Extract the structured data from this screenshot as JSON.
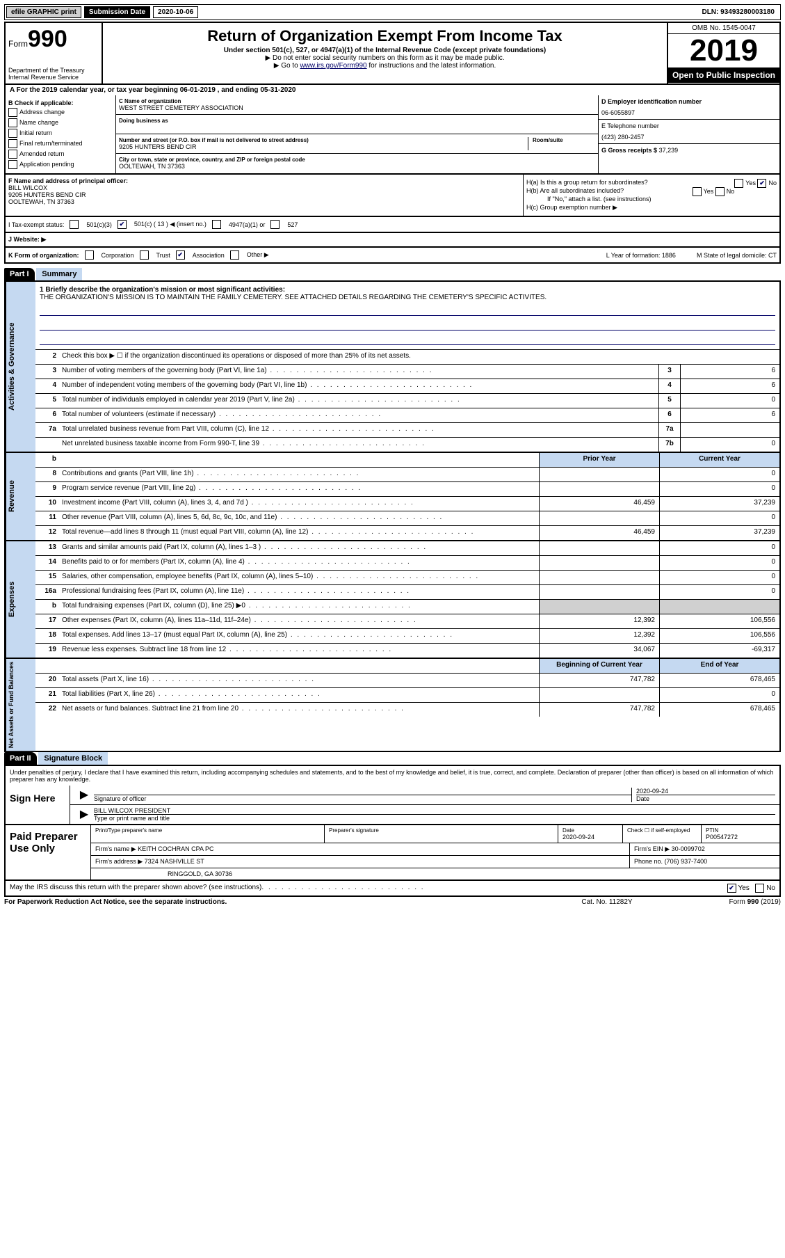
{
  "topbar": {
    "efile": "efile GRAPHIC print",
    "submission_label": "Submission Date",
    "submission_date": "2020-10-06",
    "dln": "DLN: 93493280003180"
  },
  "header": {
    "form_label": "Form",
    "form_num": "990",
    "dept": "Department of the Treasury\nInternal Revenue Service",
    "title": "Return of Organization Exempt From Income Tax",
    "sub1": "Under section 501(c), 527, or 4947(a)(1) of the Internal Revenue Code (except private foundations)",
    "sub2": "▶ Do not enter social security numbers on this form as it may be made public.",
    "sub3_pre": "▶ Go to ",
    "sub3_link": "www.irs.gov/Form990",
    "sub3_post": " for instructions and the latest information.",
    "omb": "OMB No. 1545-0047",
    "year": "2019",
    "inspect": "Open to Public Inspection"
  },
  "line_a": "A For the 2019 calendar year, or tax year beginning 06-01-2019    , and ending 05-31-2020",
  "col_b": {
    "title": "B Check if applicable:",
    "items": [
      "Address change",
      "Name change",
      "Initial return",
      "Final return/terminated",
      "Amended return",
      "Application pending"
    ]
  },
  "col_c": {
    "name_label": "C Name of organization",
    "name": "WEST STREET CEMETERY ASSOCIATION",
    "dba_label": "Doing business as",
    "addr_label": "Number and street (or P.O. box if mail is not delivered to street address)",
    "room_label": "Room/suite",
    "addr": "9205 HUNTERS BEND CIR",
    "city_label": "City or town, state or province, country, and ZIP or foreign postal code",
    "city": "OOLTEWAH, TN  37363"
  },
  "col_d": {
    "ein_label": "D Employer identification number",
    "ein": "06-6055897",
    "phone_label": "E Telephone number",
    "phone": "(423) 280-2457",
    "gross_label": "G Gross receipts $",
    "gross": "37,239"
  },
  "principal": {
    "label": "F  Name and address of principal officer:",
    "name": "BILL WILCOX",
    "addr1": "9205 HUNTERS BEND CIR",
    "addr2": "OOLTEWAH, TN  37363",
    "ha": "H(a)  Is this a group return for subordinates?",
    "hb": "H(b)  Are all subordinates included?",
    "hb_note": "If \"No,\" attach a list. (see instructions)",
    "hc": "H(c)  Group exemption number ▶",
    "yes": "Yes",
    "no": "No"
  },
  "status": {
    "label": "I   Tax-exempt status:",
    "opt1": "501(c)(3)",
    "opt2": "501(c) ( 13 ) ◀ (insert no.)",
    "opt3": "4947(a)(1) or",
    "opt4": "527"
  },
  "website": {
    "label": "J   Website: ▶"
  },
  "kform": {
    "label": "K Form of organization:",
    "opts": [
      "Corporation",
      "Trust",
      "Association",
      "Other ▶"
    ],
    "l": "L Year of formation: 1886",
    "m": "M State of legal domicile: CT"
  },
  "part1": {
    "part": "Part I",
    "title": "Summary"
  },
  "mission": {
    "q": "1  Briefly describe the organization's mission or most significant activities:",
    "text": "THE ORGANIZATION'S MISSION IS TO MAINTAIN THE FAMILY CEMETERY. SEE ATTACHED DETAILS REGARDING THE CEMETERY'S SPECIFIC ACTIVITES."
  },
  "governance": {
    "section": "Activities & Governance",
    "r2": "Check this box ▶ ☐  if the organization discontinued its operations or disposed of more than 25% of its net assets.",
    "rows": [
      {
        "n": "3",
        "d": "Number of voting members of the governing body (Part VI, line 1a)",
        "b": "3",
        "v": "6"
      },
      {
        "n": "4",
        "d": "Number of independent voting members of the governing body (Part VI, line 1b)",
        "b": "4",
        "v": "6"
      },
      {
        "n": "5",
        "d": "Total number of individuals employed in calendar year 2019 (Part V, line 2a)",
        "b": "5",
        "v": "0"
      },
      {
        "n": "6",
        "d": "Total number of volunteers (estimate if necessary)",
        "b": "6",
        "v": "6"
      },
      {
        "n": "7a",
        "d": "Total unrelated business revenue from Part VIII, column (C), line 12",
        "b": "7a",
        "v": ""
      },
      {
        "n": "",
        "d": "Net unrelated business taxable income from Form 990-T, line 39",
        "b": "7b",
        "v": "0"
      }
    ]
  },
  "two_col_header": {
    "pb": "b",
    "prior": "Prior Year",
    "curr": "Current Year"
  },
  "revenue": {
    "section": "Revenue",
    "rows": [
      {
        "n": "8",
        "d": "Contributions and grants (Part VIII, line 1h)",
        "p": "",
        "c": "0"
      },
      {
        "n": "9",
        "d": "Program service revenue (Part VIII, line 2g)",
        "p": "",
        "c": "0"
      },
      {
        "n": "10",
        "d": "Investment income (Part VIII, column (A), lines 3, 4, and 7d )",
        "p": "46,459",
        "c": "37,239"
      },
      {
        "n": "11",
        "d": "Other revenue (Part VIII, column (A), lines 5, 6d, 8c, 9c, 10c, and 11e)",
        "p": "",
        "c": "0"
      },
      {
        "n": "12",
        "d": "Total revenue—add lines 8 through 11 (must equal Part VIII, column (A), line 12)",
        "p": "46,459",
        "c": "37,239"
      }
    ]
  },
  "expenses": {
    "section": "Expenses",
    "rows": [
      {
        "n": "13",
        "d": "Grants and similar amounts paid (Part IX, column (A), lines 1–3 )",
        "p": "",
        "c": "0"
      },
      {
        "n": "14",
        "d": "Benefits paid to or for members (Part IX, column (A), line 4)",
        "p": "",
        "c": "0"
      },
      {
        "n": "15",
        "d": "Salaries, other compensation, employee benefits (Part IX, column (A), lines 5–10)",
        "p": "",
        "c": "0"
      },
      {
        "n": "16a",
        "d": "Professional fundraising fees (Part IX, column (A), line 11e)",
        "p": "",
        "c": "0"
      },
      {
        "n": "b",
        "d": "Total fundraising expenses (Part IX, column (D), line 25) ▶0",
        "p": "shaded",
        "c": "shaded"
      },
      {
        "n": "17",
        "d": "Other expenses (Part IX, column (A), lines 11a–11d, 11f–24e)",
        "p": "12,392",
        "c": "106,556"
      },
      {
        "n": "18",
        "d": "Total expenses. Add lines 13–17 (must equal Part IX, column (A), line 25)",
        "p": "12,392",
        "c": "106,556"
      },
      {
        "n": "19",
        "d": "Revenue less expenses. Subtract line 18 from line 12",
        "p": "34,067",
        "c": "-69,317"
      }
    ]
  },
  "netassets": {
    "section": "Net Assets or Fund Balances",
    "header_p": "Beginning of Current Year",
    "header_c": "End of Year",
    "rows": [
      {
        "n": "20",
        "d": "Total assets (Part X, line 16)",
        "p": "747,782",
        "c": "678,465"
      },
      {
        "n": "21",
        "d": "Total liabilities (Part X, line 26)",
        "p": "",
        "c": "0"
      },
      {
        "n": "22",
        "d": "Net assets or fund balances. Subtract line 21 from line 20",
        "p": "747,782",
        "c": "678,465"
      }
    ]
  },
  "part2": {
    "part": "Part II",
    "title": "Signature Block"
  },
  "sig_intro": "Under penalties of perjury, I declare that I have examined this return, including accompanying schedules and statements, and to the best of my knowledge and belief, it is true, correct, and complete. Declaration of preparer (other than officer) is based on all information of which preparer has any knowledge.",
  "sign": {
    "here": "Sign Here",
    "sig_label": "Signature of officer",
    "date": "2020-09-24",
    "date_label": "Date",
    "name": "BILL WILCOX PRESIDENT",
    "name_label": "Type or print name and title"
  },
  "preparer": {
    "title": "Paid Preparer Use Only",
    "h1": "Print/Type preparer's name",
    "h2": "Preparer's signature",
    "h3": "Date",
    "date": "2020-09-24",
    "h4": "Check ☐ if self-employed",
    "h5": "PTIN",
    "ptin": "P00547272",
    "firm_label": "Firm's name    ▶",
    "firm": "KEITH COCHRAN CPA PC",
    "ein_label": "Firm's EIN ▶",
    "ein": "30-0099702",
    "addr_label": "Firm's address ▶",
    "addr1": "7324 NASHVILLE ST",
    "addr2": "RINGGOLD, GA  30736",
    "phone_label": "Phone no.",
    "phone": "(706) 937-7400"
  },
  "discuss": {
    "q": "May the IRS discuss this return with the preparer shown above? (see instructions)",
    "yes": "Yes",
    "no": "No"
  },
  "footer": {
    "f1": "For Paperwork Reduction Act Notice, see the separate instructions.",
    "f2": "Cat. No. 11282Y",
    "f3": "Form 990 (2019)"
  }
}
